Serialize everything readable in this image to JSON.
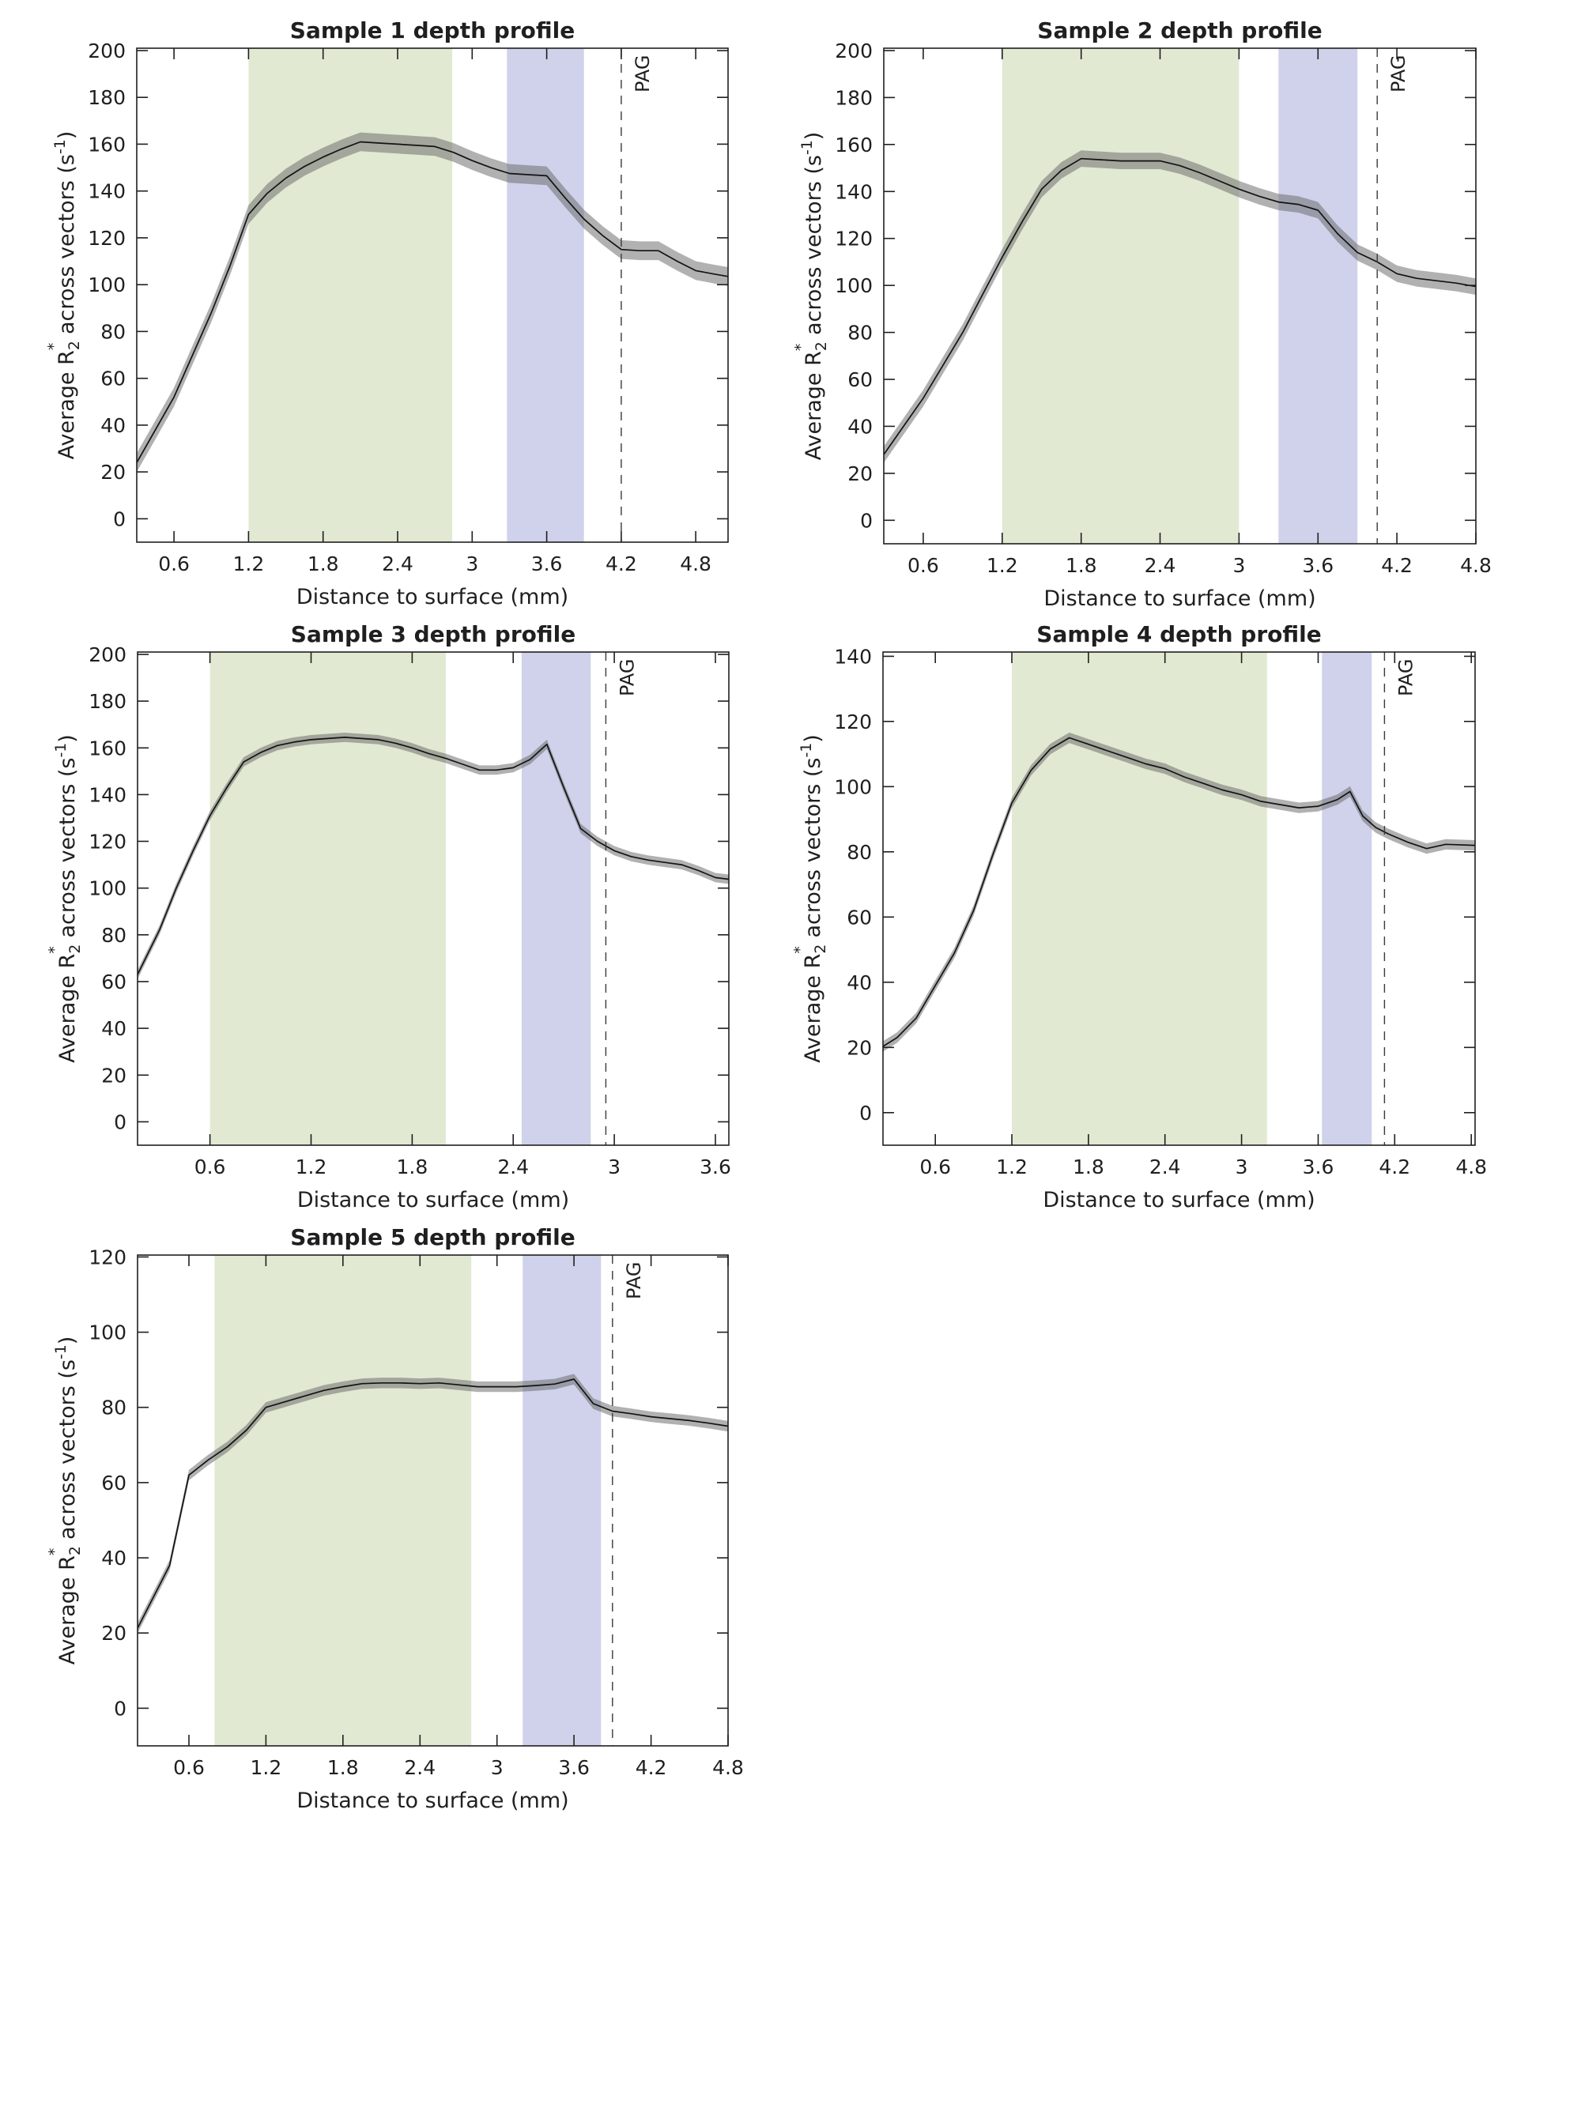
{
  "figure": {
    "background": "#ffffff"
  },
  "colors": {
    "green_band": "#e1e9d3",
    "purple_band": "#cfd2ea",
    "error_band": "#646464",
    "error_band_opacity": 0.5,
    "line": "#131313",
    "axis": "#1f1f1f",
    "dashed_line": "#3a3a3a",
    "text": "#1f1f1f"
  },
  "labels": {
    "xlabel": "Distance to surface (mm)",
    "ylabel_parts": {
      "prefix": "Average R",
      "sub": "2",
      "sup": "*",
      "mid": " across vectors (s",
      "exp": "-1",
      "close": ")"
    },
    "pag": "PAG"
  },
  "chart_data": [
    {
      "type": "line",
      "title": "Sample 1 depth profile",
      "xlim": [
        0.3,
        5.06
      ],
      "ylim": [
        -10,
        201
      ],
      "xticks": [
        0.6,
        1.2,
        1.8,
        2.4,
        3.0,
        3.6,
        4.2,
        4.8
      ],
      "xtick_labels": [
        "0.6",
        "1.2",
        "1.8",
        "2.4",
        "3",
        "3.6",
        "4.2",
        "4.8"
      ],
      "yticks": [
        0,
        20,
        40,
        60,
        80,
        100,
        120,
        140,
        160,
        180,
        200
      ],
      "green_band": [
        1.2,
        2.84
      ],
      "purple_band": [
        3.28,
        3.9
      ],
      "pag_x": 4.2,
      "err": 4,
      "points": [
        [
          0.3,
          24
        ],
        [
          0.45,
          38
        ],
        [
          0.6,
          52
        ],
        [
          0.75,
          70
        ],
        [
          0.9,
          88
        ],
        [
          1.05,
          108
        ],
        [
          1.2,
          130
        ],
        [
          1.35,
          139
        ],
        [
          1.5,
          145.5
        ],
        [
          1.65,
          150.5
        ],
        [
          1.8,
          154.5
        ],
        [
          1.95,
          158
        ],
        [
          2.1,
          161
        ],
        [
          2.25,
          160.5
        ],
        [
          2.4,
          160
        ],
        [
          2.55,
          159.5
        ],
        [
          2.7,
          159
        ],
        [
          2.85,
          156.5
        ],
        [
          3.0,
          153
        ],
        [
          3.15,
          150
        ],
        [
          3.3,
          147.5
        ],
        [
          3.45,
          147
        ],
        [
          3.6,
          146.5
        ],
        [
          3.75,
          137
        ],
        [
          3.9,
          128
        ],
        [
          4.05,
          121
        ],
        [
          4.2,
          115
        ],
        [
          4.35,
          114.5
        ],
        [
          4.5,
          114.5
        ],
        [
          4.65,
          110
        ],
        [
          4.8,
          106
        ],
        [
          4.95,
          104.5
        ],
        [
          5.06,
          103.5
        ]
      ]
    },
    {
      "type": "line",
      "title": "Sample 2 depth profile",
      "xlim": [
        0.3,
        4.8
      ],
      "ylim": [
        -10,
        201
      ],
      "xticks": [
        0.6,
        1.2,
        1.8,
        2.4,
        3.0,
        3.6,
        4.2,
        4.8
      ],
      "xtick_labels": [
        "0.6",
        "1.2",
        "1.8",
        "2.4",
        "3",
        "3.6",
        "4.2",
        "4.8"
      ],
      "yticks": [
        0,
        20,
        40,
        60,
        80,
        100,
        120,
        140,
        160,
        180,
        200
      ],
      "green_band": [
        1.2,
        3.0
      ],
      "purple_band": [
        3.3,
        3.9
      ],
      "pag_x": 4.05,
      "err": 3.5,
      "points": [
        [
          0.3,
          28
        ],
        [
          0.45,
          40
        ],
        [
          0.6,
          52
        ],
        [
          0.75,
          66
        ],
        [
          0.9,
          80
        ],
        [
          1.05,
          96
        ],
        [
          1.2,
          112
        ],
        [
          1.35,
          127
        ],
        [
          1.5,
          141
        ],
        [
          1.65,
          149
        ],
        [
          1.8,
          154
        ],
        [
          1.95,
          153.5
        ],
        [
          2.1,
          153
        ],
        [
          2.25,
          153
        ],
        [
          2.4,
          153
        ],
        [
          2.55,
          151
        ],
        [
          2.7,
          148
        ],
        [
          2.85,
          144.5
        ],
        [
          3.0,
          141
        ],
        [
          3.15,
          138
        ],
        [
          3.3,
          135.5
        ],
        [
          3.45,
          134.5
        ],
        [
          3.6,
          132
        ],
        [
          3.75,
          122
        ],
        [
          3.9,
          114
        ],
        [
          4.05,
          110
        ],
        [
          4.2,
          105
        ],
        [
          4.35,
          103
        ],
        [
          4.5,
          102
        ],
        [
          4.65,
          101
        ],
        [
          4.8,
          99.5
        ]
      ]
    },
    {
      "type": "line",
      "title": "Sample 3 depth profile",
      "xlim": [
        0.17,
        3.68
      ],
      "ylim": [
        -10,
        201
      ],
      "xticks": [
        0.6,
        1.2,
        1.8,
        2.4,
        3.0,
        3.6
      ],
      "xtick_labels": [
        "0.6",
        "1.2",
        "1.8",
        "2.4",
        "3",
        "3.6"
      ],
      "yticks": [
        0,
        20,
        40,
        60,
        80,
        100,
        120,
        140,
        160,
        180,
        200
      ],
      "green_band": [
        0.6,
        2.0
      ],
      "purple_band": [
        2.45,
        2.86
      ],
      "pag_x": 2.95,
      "err": 2,
      "points": [
        [
          0.17,
          63
        ],
        [
          0.3,
          82
        ],
        [
          0.4,
          100
        ],
        [
          0.5,
          116
        ],
        [
          0.6,
          131
        ],
        [
          0.7,
          143
        ],
        [
          0.8,
          154
        ],
        [
          0.9,
          158
        ],
        [
          1.0,
          161
        ],
        [
          1.1,
          162.5
        ],
        [
          1.2,
          163.5
        ],
        [
          1.3,
          164
        ],
        [
          1.4,
          164.5
        ],
        [
          1.5,
          164
        ],
        [
          1.6,
          163.5
        ],
        [
          1.7,
          162
        ],
        [
          1.8,
          160
        ],
        [
          1.9,
          157.5
        ],
        [
          2.0,
          155.5
        ],
        [
          2.1,
          153
        ],
        [
          2.2,
          150.5
        ],
        [
          2.3,
          150.5
        ],
        [
          2.4,
          151.5
        ],
        [
          2.5,
          155
        ],
        [
          2.6,
          161.5
        ],
        [
          2.7,
          143
        ],
        [
          2.8,
          125.5
        ],
        [
          2.9,
          120
        ],
        [
          3.0,
          116
        ],
        [
          3.1,
          113.5
        ],
        [
          3.2,
          112
        ],
        [
          3.3,
          111
        ],
        [
          3.4,
          110
        ],
        [
          3.5,
          107.5
        ],
        [
          3.6,
          104.5
        ],
        [
          3.68,
          103.8
        ]
      ]
    },
    {
      "type": "line",
      "title": "Sample 4 depth profile",
      "xlim": [
        0.19,
        4.83
      ],
      "ylim": [
        -10,
        141.3
      ],
      "xticks": [
        0.6,
        1.2,
        1.8,
        2.4,
        3.0,
        3.6,
        4.2,
        4.8
      ],
      "xtick_labels": [
        "0.6",
        "1.2",
        "1.8",
        "2.4",
        "3",
        "3.6",
        "4.2",
        "4.8"
      ],
      "yticks": [
        0,
        20,
        40,
        60,
        80,
        100,
        120,
        140
      ],
      "green_band": [
        1.2,
        3.2
      ],
      "purple_band": [
        3.63,
        4.02
      ],
      "pag_x": 4.12,
      "err": 1.6,
      "points": [
        [
          0.19,
          20.3
        ],
        [
          0.3,
          23
        ],
        [
          0.45,
          29
        ],
        [
          0.6,
          39
        ],
        [
          0.75,
          49
        ],
        [
          0.9,
          62
        ],
        [
          1.05,
          79
        ],
        [
          1.2,
          95
        ],
        [
          1.35,
          105
        ],
        [
          1.5,
          111.5
        ],
        [
          1.65,
          115
        ],
        [
          1.8,
          113
        ],
        [
          1.95,
          111
        ],
        [
          2.1,
          109
        ],
        [
          2.25,
          107
        ],
        [
          2.4,
          105.5
        ],
        [
          2.55,
          103
        ],
        [
          2.7,
          101
        ],
        [
          2.85,
          99
        ],
        [
          3.0,
          97.5
        ],
        [
          3.15,
          95.5
        ],
        [
          3.3,
          94.5
        ],
        [
          3.45,
          93.5
        ],
        [
          3.6,
          94
        ],
        [
          3.75,
          96
        ],
        [
          3.85,
          98.5
        ],
        [
          3.95,
          91
        ],
        [
          4.05,
          87.5
        ],
        [
          4.15,
          85.5
        ],
        [
          4.3,
          83
        ],
        [
          4.45,
          81
        ],
        [
          4.6,
          82.3
        ],
        [
          4.83,
          82
        ]
      ]
    },
    {
      "type": "line",
      "title": "Sample 5 depth profile",
      "xlim": [
        0.2,
        4.8
      ],
      "ylim": [
        -10,
        120.5
      ],
      "xticks": [
        0.6,
        1.2,
        1.8,
        2.4,
        3.0,
        3.6,
        4.2,
        4.8
      ],
      "xtick_labels": [
        "0.6",
        "1.2",
        "1.8",
        "2.4",
        "3",
        "3.6",
        "4.2",
        "4.8"
      ],
      "yticks": [
        0,
        20,
        40,
        60,
        80,
        100,
        120
      ],
      "green_band": [
        0.8,
        2.8
      ],
      "purple_band": [
        3.2,
        3.81
      ],
      "pag_x": 3.9,
      "err": 1.4,
      "points": [
        [
          0.2,
          21.3
        ],
        [
          0.45,
          38
        ],
        [
          0.6,
          62
        ],
        [
          0.75,
          66
        ],
        [
          0.9,
          69.5
        ],
        [
          1.05,
          74
        ],
        [
          1.2,
          80
        ],
        [
          1.35,
          81.5
        ],
        [
          1.5,
          83
        ],
        [
          1.65,
          84.5
        ],
        [
          1.8,
          85.5
        ],
        [
          1.95,
          86.3
        ],
        [
          2.1,
          86.5
        ],
        [
          2.25,
          86.5
        ],
        [
          2.4,
          86.3
        ],
        [
          2.55,
          86.5
        ],
        [
          2.7,
          86
        ],
        [
          2.85,
          85.5
        ],
        [
          3.0,
          85.5
        ],
        [
          3.15,
          85.5
        ],
        [
          3.3,
          85.8
        ],
        [
          3.45,
          86.2
        ],
        [
          3.6,
          87.5
        ],
        [
          3.75,
          81
        ],
        [
          3.9,
          79
        ],
        [
          4.05,
          78.3
        ],
        [
          4.2,
          77.5
        ],
        [
          4.35,
          77
        ],
        [
          4.5,
          76.5
        ],
        [
          4.65,
          75.8
        ],
        [
          4.8,
          75
        ]
      ]
    }
  ]
}
